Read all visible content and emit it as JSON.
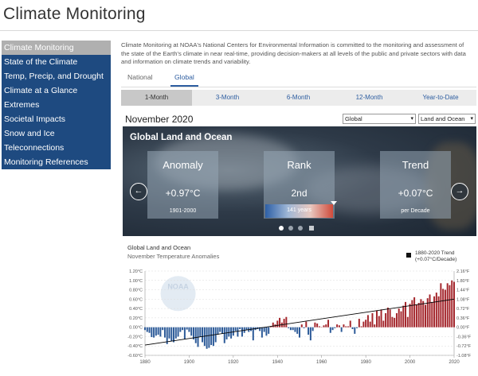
{
  "page": {
    "title": "Climate Monitoring"
  },
  "sidebar": {
    "items": [
      {
        "label": "Climate Monitoring",
        "active": true
      },
      {
        "label": "State of the Climate"
      },
      {
        "label": "Temp, Precip, and Drought"
      },
      {
        "label": "Climate at a Glance"
      },
      {
        "label": "Extremes"
      },
      {
        "label": "Societal Impacts"
      },
      {
        "label": "Snow and Ice"
      },
      {
        "label": "Teleconnections"
      },
      {
        "label": "Monitoring References"
      }
    ]
  },
  "intro": {
    "text": "Climate Monitoring at NOAA's National Centers for Environmental Information is committed to the monitoring and assessment of the state of the Earth's climate in near real-time, providing decision-makers at all levels of the public and private sectors with data and information on climate trends and variability."
  },
  "region_tabs": [
    {
      "label": "National"
    },
    {
      "label": "Global",
      "active": true
    }
  ],
  "period_tabs": [
    {
      "label": "1-Month",
      "active": true
    },
    {
      "label": "3-Month"
    },
    {
      "label": "6-Month"
    },
    {
      "label": "12-Month"
    },
    {
      "label": "Year-to-Date"
    }
  ],
  "month_title": "November 2020",
  "selects": {
    "region": "Global",
    "surface": "Land and Ocean"
  },
  "panel": {
    "title": "Global Land and Ocean",
    "anomaly": {
      "title": "Anomaly",
      "value": "+0.97°C",
      "sub": "1901-2000"
    },
    "rank": {
      "title": "Rank",
      "value": "2nd",
      "sub": "141 years"
    },
    "trend": {
      "title": "Trend",
      "value": "+0.07°C",
      "sub": "per Decade"
    },
    "prev_icon": "arrow-left-icon",
    "next_icon": "arrow-right-icon",
    "slide_dots": 4,
    "active_slide": 1
  },
  "chart_data": {
    "type": "bar",
    "title": "Global Land and Ocean",
    "subtitle": "November Temperature Anomalies",
    "legend": {
      "label": "1880-2020 Trend\n(+0.07°C/Decade)",
      "placement": "top-right"
    },
    "xlim": [
      1880,
      2020
    ],
    "ylim_c": [
      -0.6,
      1.2
    ],
    "ylim_f": [
      -1.08,
      2.16
    ],
    "x_ticks": [
      "1880",
      "1900",
      "1920",
      "1940",
      "1960",
      "1980",
      "2000",
      "2020"
    ],
    "y_ticks_c": [
      "1.20°C",
      "1.00°C",
      "0.80°C",
      "0.60°C",
      "0.40°C",
      "0.20°C",
      "0.00°C",
      "-0.20°C",
      "-0.40°C",
      "-0.60°C"
    ],
    "y_ticks_f": [
      "2.16°F",
      "1.80°F",
      "1.44°F",
      "1.08°F",
      "0.72°F",
      "0.36°F",
      "0.00°F",
      "-0.36°F",
      "-0.72°F",
      "-1.08°F"
    ],
    "positive_color": "#a4262c",
    "negative_color": "#2c5a98",
    "trend_color": "#000000",
    "trend": {
      "per_decade": 0.07,
      "start_value": -0.38
    },
    "years_start": 1880,
    "values": [
      -0.06,
      -0.1,
      -0.12,
      -0.21,
      -0.22,
      -0.18,
      -0.16,
      -0.2,
      -0.06,
      -0.22,
      -0.36,
      -0.24,
      -0.3,
      -0.32,
      -0.24,
      -0.2,
      -0.1,
      -0.06,
      -0.26,
      -0.05,
      -0.1,
      -0.18,
      -0.26,
      -0.34,
      -0.42,
      -0.2,
      -0.32,
      -0.4,
      -0.46,
      -0.44,
      -0.38,
      -0.4,
      -0.32,
      -0.16,
      -0.1,
      -0.14,
      -0.34,
      -0.26,
      -0.2,
      -0.24,
      -0.18,
      -0.08,
      -0.2,
      -0.04,
      -0.2,
      -0.12,
      -0.06,
      -0.1,
      -0.08,
      -0.28,
      -0.06,
      -0.04,
      -0.08,
      -0.22,
      -0.1,
      -0.18,
      -0.14,
      0.02,
      0.1,
      0.06,
      0.14,
      0.2,
      0.1,
      0.18,
      0.22,
      -0.02,
      -0.06,
      -0.06,
      -0.1,
      -0.14,
      -0.22,
      0.06,
      -0.02,
      0.12,
      -0.16,
      -0.28,
      -0.08,
      0.1,
      0.08,
      0.02,
      0.0,
      0.04,
      0.06,
      0.16,
      -0.12,
      -0.06,
      -0.02,
      0.06,
      0.04,
      -0.1,
      0.06,
      0.02,
      0.02,
      0.14,
      -0.04,
      -0.14,
      -0.02,
      0.18,
      0.02,
      0.12,
      0.16,
      0.26,
      0.12,
      0.3,
      0.06,
      0.36,
      0.24,
      0.38,
      0.14,
      0.3,
      0.42,
      0.38,
      0.22,
      0.2,
      0.3,
      0.4,
      0.34,
      0.46,
      0.54,
      0.22,
      0.5,
      0.58,
      0.64,
      0.48,
      0.52,
      0.6,
      0.56,
      0.48,
      0.62,
      0.7,
      0.54,
      0.66,
      0.74,
      0.66,
      0.94,
      0.82,
      0.8,
      0.94,
      0.9,
      1.0,
      0.97
    ]
  },
  "watermark": {
    "logo": "NOAA"
  }
}
